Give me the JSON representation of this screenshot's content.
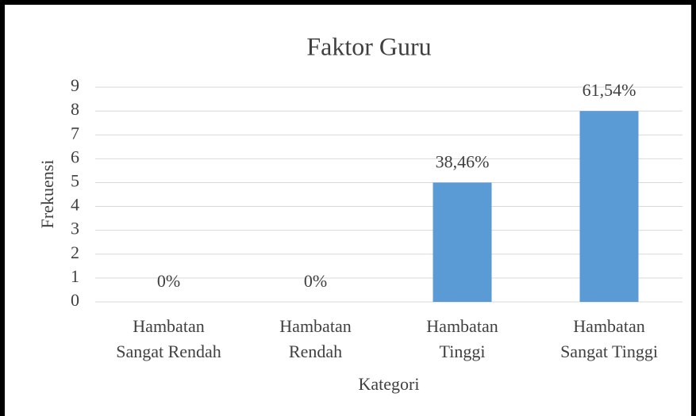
{
  "chart_data": {
    "type": "bar",
    "title": "Faktor Guru",
    "categories": [
      [
        "Hambatan",
        "Sangat Rendah"
      ],
      [
        "Hambatan",
        "Rendah"
      ],
      [
        "Hambatan",
        "Tinggi"
      ],
      [
        "Hambatan",
        "Sangat Tinggi"
      ]
    ],
    "values": [
      0,
      0,
      5,
      8
    ],
    "annotations": [
      "0%",
      "0%",
      "38,46%",
      "61,54%"
    ],
    "color": "#5b9bd5",
    "x_label": "Kategori",
    "y_label": "Frekuensi",
    "ylim": [
      0,
      9
    ],
    "yticks": [
      0,
      1,
      2,
      3,
      4,
      5,
      6,
      7,
      8,
      9
    ],
    "grid": true
  }
}
